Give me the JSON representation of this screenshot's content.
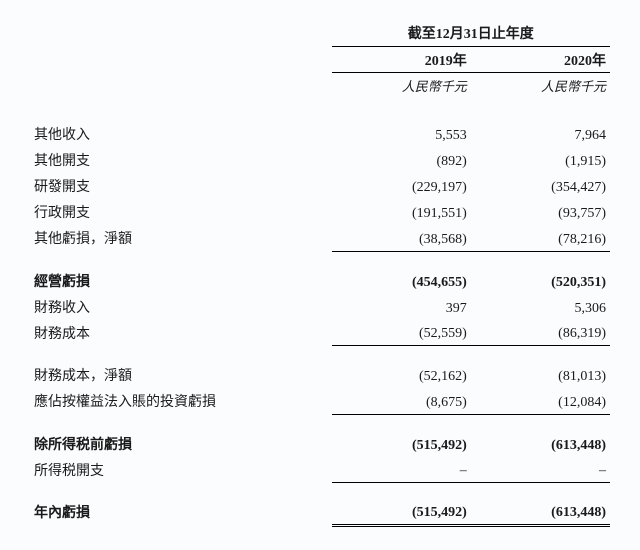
{
  "colors": {
    "background": "#fbfcfe",
    "text": "#1a1a1a",
    "rule": "#000000"
  },
  "typography": {
    "font_family": "Microsoft YaHei / SimSun serif",
    "base_size_pt": 11,
    "unit_style": "italic"
  },
  "header": {
    "period": "截至12月31日止年度",
    "years": [
      "2019年",
      "2020年"
    ],
    "units": [
      "人民幣千元",
      "人民幣千元"
    ]
  },
  "rows": [
    {
      "label": "其他收入",
      "y2019": "5,553",
      "y2020": "7,964",
      "bold": false
    },
    {
      "label": "其他開支",
      "y2019": "(892)",
      "y2020": "(1,915)",
      "bold": false
    },
    {
      "label": "研發開支",
      "y2019": "(229,197)",
      "y2020": "(354,427)",
      "bold": false
    },
    {
      "label": "行政開支",
      "y2019": "(191,551)",
      "y2020": "(93,757)",
      "bold": false
    },
    {
      "label": "其他虧損，淨額",
      "y2019": "(38,568)",
      "y2020": "(78,216)",
      "bold": false,
      "rule_below": true
    },
    {
      "spacer": true
    },
    {
      "label": "經營虧損",
      "y2019": "(454,655)",
      "y2020": "(520,351)",
      "bold": true
    },
    {
      "label": "財務收入",
      "y2019": "397",
      "y2020": "5,306",
      "bold": false
    },
    {
      "label": "財務成本",
      "y2019": "(52,559)",
      "y2020": "(86,319)",
      "bold": false,
      "rule_below": true
    },
    {
      "spacer": true
    },
    {
      "label": "財務成本，淨額",
      "y2019": "(52,162)",
      "y2020": "(81,013)",
      "bold": false
    },
    {
      "label": "應佔按權益法入賬的投資虧損",
      "y2019": "(8,675)",
      "y2020": "(12,084)",
      "bold": false,
      "rule_below": true
    },
    {
      "spacer": true
    },
    {
      "label": "除所得税前虧損",
      "y2019": "(515,492)",
      "y2020": "(613,448)",
      "bold": true
    },
    {
      "label": "所得税開支",
      "y2019": "–",
      "y2020": "–",
      "bold": false,
      "rule_below": true
    },
    {
      "spacer": true
    },
    {
      "label": "年內虧損",
      "y2019": "(515,492)",
      "y2020": "(613,448)",
      "bold": true,
      "double_rule_below": true
    }
  ]
}
